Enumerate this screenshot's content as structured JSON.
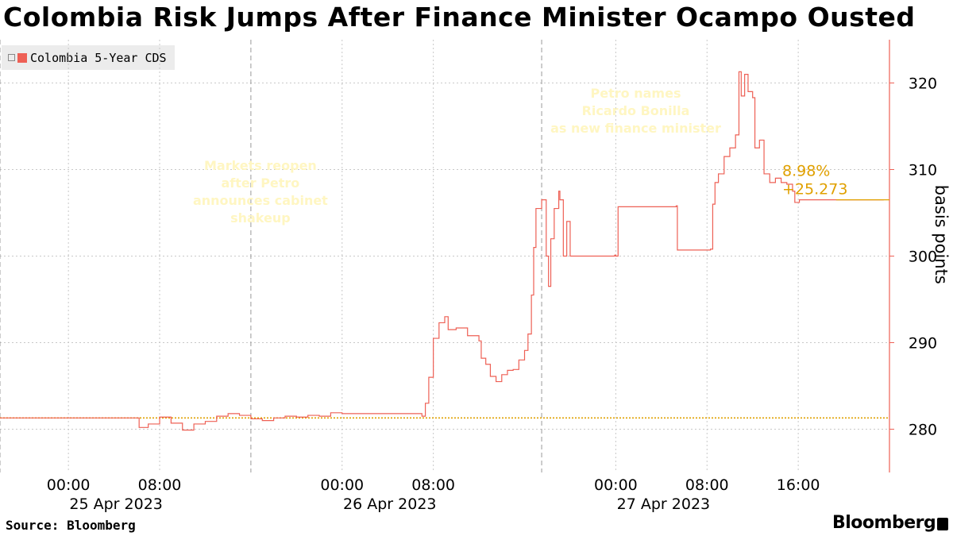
{
  "header": {
    "title": "Colombia Risk Jumps After Finance Minister Ocampo Ousted"
  },
  "legend": {
    "label": "Colombia 5-Year CDS",
    "color": "#ee6055"
  },
  "footer": {
    "source": "Source: Bloomberg",
    "brand": "Bloomberg"
  },
  "chart_data": {
    "type": "line",
    "title": "Colombia Risk Jumps After Finance Minister Ocampo Ousted",
    "ylabel": "basis points",
    "ylim": [
      275,
      325
    ],
    "y_ticks": [
      280,
      290,
      300,
      310,
      320
    ],
    "x_ticks": [
      {
        "time": "00:00",
        "date": "25 Apr 2023"
      },
      {
        "time": "08:00",
        "date": ""
      },
      {
        "time": "00:00",
        "date": "26 Apr 2023"
      },
      {
        "time": "08:00",
        "date": ""
      },
      {
        "time": "00:00",
        "date": "27 Apr 2023"
      },
      {
        "time": "08:00",
        "date": ""
      },
      {
        "time": "16:00",
        "date": ""
      }
    ],
    "x_unit": "hours since 24 Apr 2023 18:00",
    "x_range": [
      0,
      78
    ],
    "grid": true,
    "legend_position": "top-left",
    "series": [
      {
        "name": "Colombia 5-Year CDS",
        "color": "#ee6055",
        "points": [
          [
            0,
            281.3
          ],
          [
            12,
            281.3
          ],
          [
            12.2,
            280.2
          ],
          [
            13,
            280.6
          ],
          [
            14,
            281.4
          ],
          [
            15,
            280.7
          ],
          [
            16,
            279.9
          ],
          [
            17,
            280.6
          ],
          [
            18,
            280.9
          ],
          [
            19,
            281.5
          ],
          [
            20,
            281.8
          ],
          [
            21,
            281.6
          ],
          [
            22,
            281.2
          ],
          [
            23,
            281.0
          ],
          [
            24,
            281.3
          ],
          [
            25,
            281.5
          ],
          [
            26,
            281.4
          ],
          [
            27,
            281.6
          ],
          [
            28,
            281.5
          ],
          [
            29,
            281.9
          ],
          [
            30,
            281.8
          ],
          [
            34,
            281.8
          ],
          [
            36,
            281.8
          ],
          [
            37,
            281.5
          ],
          [
            37.3,
            283
          ],
          [
            37.6,
            286
          ],
          [
            38,
            290.5
          ],
          [
            38.5,
            292.3
          ],
          [
            39,
            293
          ],
          [
            39.3,
            291.5
          ],
          [
            40,
            291.7
          ],
          [
            41,
            290.8
          ],
          [
            42,
            290.2
          ],
          [
            42.2,
            288.2
          ],
          [
            42.6,
            287.5
          ],
          [
            43,
            286.1
          ],
          [
            43.5,
            285.5
          ],
          [
            44,
            286.3
          ],
          [
            44.5,
            286.8
          ],
          [
            45,
            286.9
          ],
          [
            45.5,
            288
          ],
          [
            46,
            289.1
          ],
          [
            46.3,
            291
          ],
          [
            46.6,
            295.5
          ],
          [
            46.8,
            301
          ],
          [
            47,
            305.5
          ],
          [
            47.5,
            306.5
          ],
          [
            47.9,
            300
          ],
          [
            48.1,
            296.5
          ],
          [
            48.3,
            302
          ],
          [
            48.6,
            305.5
          ],
          [
            49,
            307.5
          ],
          [
            49.1,
            306.5
          ],
          [
            49.4,
            300
          ],
          [
            49.7,
            304
          ],
          [
            50,
            300
          ],
          [
            53.8,
            300
          ],
          [
            53.9,
            300.1
          ],
          [
            54,
            300
          ],
          [
            54.2,
            305.7
          ],
          [
            55,
            305.7
          ],
          [
            59.3,
            305.8
          ],
          [
            59.4,
            300.7
          ],
          [
            62.3,
            300.8
          ],
          [
            62.5,
            306
          ],
          [
            62.7,
            308.5
          ],
          [
            63,
            309.5
          ],
          [
            63.5,
            311.5
          ],
          [
            64,
            312.5
          ],
          [
            64.5,
            314
          ],
          [
            64.8,
            321.3
          ],
          [
            65,
            318.5
          ],
          [
            65.3,
            321
          ],
          [
            65.6,
            319
          ],
          [
            66,
            318.3
          ],
          [
            66.2,
            312.5
          ],
          [
            66.6,
            313.4
          ],
          [
            67,
            309.5
          ],
          [
            67.5,
            308.5
          ],
          [
            68,
            309
          ],
          [
            68.5,
            308.5
          ],
          [
            69,
            308.3
          ],
          [
            69.5,
            307.5
          ],
          [
            69.7,
            306.2
          ],
          [
            70.1,
            306.5
          ],
          [
            77.5,
            306.5
          ]
        ]
      }
    ],
    "reference_line": {
      "value": 281.3,
      "color": "#e0a000",
      "style": "dotted"
    },
    "last_value_label": {
      "pct": "8.98%",
      "change": "+25.273",
      "color": "#e0a000"
    },
    "annotations": [
      {
        "text": [
          "Markets reopen",
          "after Petro",
          "announces cabinet",
          "shakeup"
        ],
        "at_x": 22
      },
      {
        "text": [
          "Petro names",
          "Ricardo Bonilla",
          "as new finance minister"
        ],
        "at_x": 46
      }
    ],
    "event_lines_x": [
      0,
      22,
      47.5
    ]
  }
}
